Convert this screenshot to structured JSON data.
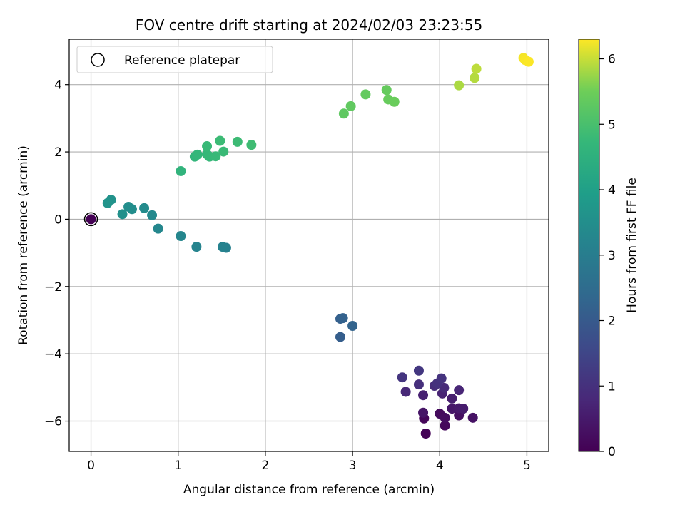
{
  "chart_data": {
    "type": "scatter",
    "title": "FOV centre drift starting at 2024/02/03 23:23:55",
    "xlabel": "Angular distance from reference (arcmin)",
    "ylabel": "Rotation from reference (arcmin)",
    "xlim": [
      -0.25,
      5.25
    ],
    "ylim": [
      -6.9,
      5.35
    ],
    "xticks": [
      0,
      1,
      2,
      3,
      4,
      5
    ],
    "xtick_labels": [
      "0",
      "1",
      "2",
      "3",
      "4",
      "5"
    ],
    "yticks": [
      -6,
      -4,
      -2,
      0,
      2,
      4
    ],
    "ytick_labels": [
      "−6",
      "−4",
      "−2",
      "0",
      "2",
      "4"
    ],
    "grid": true,
    "legend": {
      "position": "upper-left",
      "entries": [
        "Reference platepar"
      ]
    },
    "colorbar": {
      "label": "Hours from first FF file",
      "colormap": "viridis",
      "range": [
        0,
        6.3
      ],
      "ticks": [
        0,
        1,
        2,
        3,
        4,
        5,
        6
      ],
      "tick_labels": [
        "0",
        "1",
        "2",
        "3",
        "4",
        "5",
        "6"
      ]
    },
    "reference_point": {
      "x": 0,
      "y": 0
    },
    "points": [
      {
        "x": 0.0,
        "y": 0.0,
        "t": 0.0
      },
      {
        "x": 3.84,
        "y": -6.37,
        "t": 0.05
      },
      {
        "x": 3.82,
        "y": -5.92,
        "t": 0.1
      },
      {
        "x": 4.06,
        "y": -6.13,
        "t": 0.15
      },
      {
        "x": 4.0,
        "y": -5.78,
        "t": 0.2
      },
      {
        "x": 4.06,
        "y": -5.9,
        "t": 0.25
      },
      {
        "x": 4.22,
        "y": -5.83,
        "t": 0.3
      },
      {
        "x": 4.38,
        "y": -5.9,
        "t": 0.35
      },
      {
        "x": 3.81,
        "y": -5.75,
        "t": 0.4
      },
      {
        "x": 4.14,
        "y": -5.63,
        "t": 0.45
      },
      {
        "x": 4.22,
        "y": -5.62,
        "t": 0.5
      },
      {
        "x": 4.27,
        "y": -5.63,
        "t": 0.55
      },
      {
        "x": 4.14,
        "y": -5.33,
        "t": 0.6
      },
      {
        "x": 3.81,
        "y": -5.23,
        "t": 0.65
      },
      {
        "x": 4.03,
        "y": -5.18,
        "t": 0.7
      },
      {
        "x": 4.22,
        "y": -5.08,
        "t": 0.75
      },
      {
        "x": 3.61,
        "y": -5.13,
        "t": 0.8
      },
      {
        "x": 4.05,
        "y": -5.01,
        "t": 0.85
      },
      {
        "x": 3.94,
        "y": -4.95,
        "t": 0.9
      },
      {
        "x": 3.76,
        "y": -4.91,
        "t": 0.95
      },
      {
        "x": 3.97,
        "y": -4.88,
        "t": 1.0
      },
      {
        "x": 4.02,
        "y": -4.73,
        "t": 1.05
      },
      {
        "x": 3.57,
        "y": -4.7,
        "t": 1.1
      },
      {
        "x": 3.76,
        "y": -4.5,
        "t": 1.15
      },
      {
        "x": 2.86,
        "y": -3.5,
        "t": 2.1
      },
      {
        "x": 2.86,
        "y": -2.96,
        "t": 2.15
      },
      {
        "x": 2.89,
        "y": -2.94,
        "t": 2.2
      },
      {
        "x": 3.0,
        "y": -3.17,
        "t": 2.25
      },
      {
        "x": 1.55,
        "y": -0.85,
        "t": 3.1
      },
      {
        "x": 1.51,
        "y": -0.82,
        "t": 3.15
      },
      {
        "x": 1.21,
        "y": -0.82,
        "t": 3.2
      },
      {
        "x": 1.03,
        "y": -0.5,
        "t": 3.25
      },
      {
        "x": 0.77,
        "y": -0.28,
        "t": 3.3
      },
      {
        "x": 0.7,
        "y": 0.12,
        "t": 3.35
      },
      {
        "x": 0.61,
        "y": 0.33,
        "t": 3.4
      },
      {
        "x": 0.47,
        "y": 0.3,
        "t": 3.45
      },
      {
        "x": 0.43,
        "y": 0.37,
        "t": 3.5
      },
      {
        "x": 0.36,
        "y": 0.15,
        "t": 3.55
      },
      {
        "x": 0.23,
        "y": 0.58,
        "t": 3.6
      },
      {
        "x": 0.19,
        "y": 0.48,
        "t": 3.65
      },
      {
        "x": 1.03,
        "y": 1.43,
        "t": 4.6
      },
      {
        "x": 1.19,
        "y": 1.86,
        "t": 4.65
      },
      {
        "x": 1.22,
        "y": 1.92,
        "t": 4.7
      },
      {
        "x": 1.33,
        "y": 1.93,
        "t": 4.72
      },
      {
        "x": 1.36,
        "y": 1.86,
        "t": 4.74
      },
      {
        "x": 1.43,
        "y": 1.87,
        "t": 4.76
      },
      {
        "x": 1.33,
        "y": 2.17,
        "t": 4.78
      },
      {
        "x": 1.52,
        "y": 2.01,
        "t": 4.8
      },
      {
        "x": 1.48,
        "y": 2.33,
        "t": 4.82
      },
      {
        "x": 1.68,
        "y": 2.3,
        "t": 4.84
      },
      {
        "x": 1.84,
        "y": 2.21,
        "t": 4.86
      },
      {
        "x": 2.9,
        "y": 3.14,
        "t": 5.3
      },
      {
        "x": 2.98,
        "y": 3.36,
        "t": 5.33
      },
      {
        "x": 3.15,
        "y": 3.71,
        "t": 5.36
      },
      {
        "x": 3.39,
        "y": 3.84,
        "t": 5.39
      },
      {
        "x": 3.41,
        "y": 3.56,
        "t": 5.42
      },
      {
        "x": 3.48,
        "y": 3.49,
        "t": 5.45
      },
      {
        "x": 4.22,
        "y": 3.98,
        "t": 5.85
      },
      {
        "x": 4.4,
        "y": 4.2,
        "t": 5.9
      },
      {
        "x": 4.42,
        "y": 4.47,
        "t": 5.95
      },
      {
        "x": 4.96,
        "y": 4.79,
        "t": 6.25
      },
      {
        "x": 4.98,
        "y": 4.73,
        "t": 6.27
      },
      {
        "x": 5.02,
        "y": 4.68,
        "t": 6.29
      }
    ]
  }
}
